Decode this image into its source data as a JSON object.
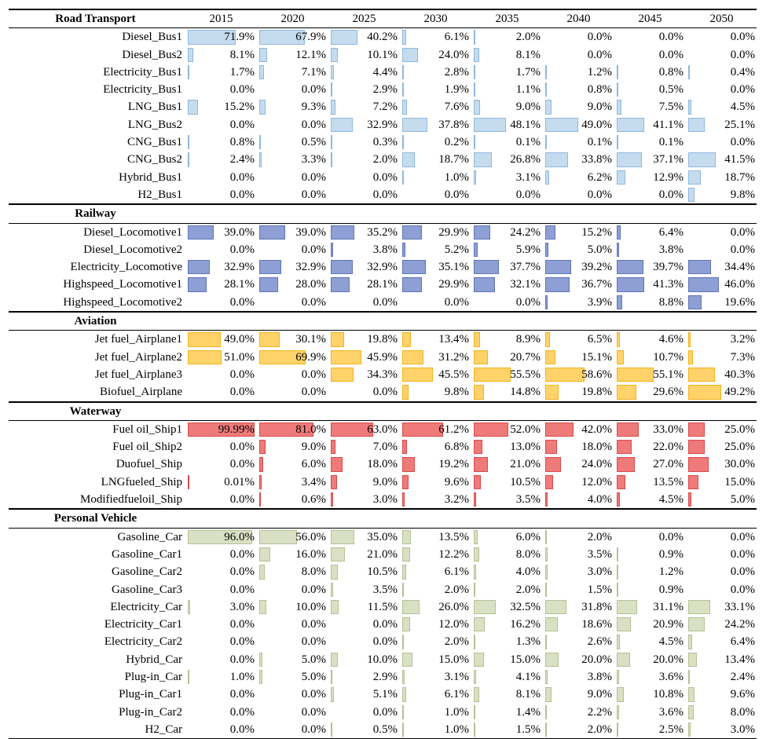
{
  "chart_data": {
    "type": "table",
    "years": [
      "2015",
      "2020",
      "2025",
      "2030",
      "2035",
      "2040",
      "2045",
      "2050"
    ],
    "colors": {
      "Road Transport": {
        "fill": "#c5dcef",
        "stroke": "#8fb8dc"
      },
      "Railway": {
        "fill": "#8d9fd4",
        "stroke": "#5f75b8"
      },
      "Aviation": {
        "fill": "#ffd36a",
        "stroke": "#f2b21e"
      },
      "Waterway": {
        "fill": "#ef7a7a",
        "stroke": "#d94a4a"
      },
      "Personal Vehicle": {
        "fill": "#d9e0c4",
        "stroke": "#b6c194"
      }
    },
    "sections": [
      {
        "name": "Road Transport",
        "rows": [
          {
            "label": "Diesel_Bus1",
            "values": [
              "71.9%",
              "67.9%",
              "40.2%",
              "6.1%",
              "2.0%",
              "0.0%",
              "0.0%",
              "0.0%"
            ]
          },
          {
            "label": "Diesel_Bus2",
            "values": [
              "8.1%",
              "12.1%",
              "10.1%",
              "24.0%",
              "8.1%",
              "0.0%",
              "0.0%",
              "0.0%"
            ]
          },
          {
            "label": "Electricity_Bus1",
            "values": [
              "1.7%",
              "7.1%",
              "4.4%",
              "2.8%",
              "1.7%",
              "1.2%",
              "0.8%",
              "0.4%"
            ]
          },
          {
            "label": "Electricity_Bus1",
            "values": [
              "0.0%",
              "0.0%",
              "2.9%",
              "1.9%",
              "1.1%",
              "0.8%",
              "0.5%",
              "0.0%"
            ]
          },
          {
            "label": "LNG_Bus1",
            "values": [
              "15.2%",
              "9.3%",
              "7.2%",
              "7.6%",
              "9.0%",
              "9.0%",
              "7.5%",
              "4.5%"
            ]
          },
          {
            "label": "LNG_Bus2",
            "values": [
              "0.0%",
              "0.0%",
              "32.9%",
              "37.8%",
              "48.1%",
              "49.0%",
              "41.1%",
              "25.1%"
            ]
          },
          {
            "label": "CNG_Bus1",
            "values": [
              "0.8%",
              "0.5%",
              "0.3%",
              "0.2%",
              "0.1%",
              "0.1%",
              "0.1%",
              "0.0%"
            ]
          },
          {
            "label": "CNG_Bus2",
            "values": [
              "2.4%",
              "3.3%",
              "2.0%",
              "18.7%",
              "26.8%",
              "33.8%",
              "37.1%",
              "41.5%"
            ]
          },
          {
            "label": "Hybrid_Bus1",
            "values": [
              "0.0%",
              "0.0%",
              "0.0%",
              "1.0%",
              "3.1%",
              "6.2%",
              "12.9%",
              "18.7%"
            ]
          },
          {
            "label": "H2_Bus1",
            "values": [
              "0.0%",
              "0.0%",
              "0.0%",
              "0.0%",
              "0.0%",
              "0.0%",
              "0.0%",
              "9.8%"
            ]
          }
        ]
      },
      {
        "name": "Railway",
        "rows": [
          {
            "label": "Diesel_Locomotive1",
            "values": [
              "39.0%",
              "39.0%",
              "35.2%",
              "29.9%",
              "24.2%",
              "15.2%",
              "6.4%",
              "0.0%"
            ]
          },
          {
            "label": "Diesel_Locomotive2",
            "values": [
              "0.0%",
              "0.0%",
              "3.8%",
              "5.2%",
              "5.9%",
              "5.0%",
              "3.8%",
              "0.0%"
            ]
          },
          {
            "label": "Electricity_Locomotive",
            "values": [
              "32.9%",
              "32.9%",
              "32.9%",
              "35.1%",
              "37.7%",
              "39.2%",
              "39.7%",
              "34.4%"
            ]
          },
          {
            "label": "Highspeed_Locomotive1",
            "values": [
              "28.1%",
              "28.0%",
              "28.1%",
              "29.9%",
              "32.1%",
              "36.7%",
              "41.3%",
              "46.0%"
            ]
          },
          {
            "label": "Highspeed_Locomotive2",
            "values": [
              "0.0%",
              "0.0%",
              "0.0%",
              "0.0%",
              "0.0%",
              "3.9%",
              "8.8%",
              "19.6%"
            ]
          }
        ]
      },
      {
        "name": "Aviation",
        "rows": [
          {
            "label": "Jet fuel_Airplane1",
            "values": [
              "49.0%",
              "30.1%",
              "19.8%",
              "13.4%",
              "8.9%",
              "6.5%",
              "4.6%",
              "3.2%"
            ]
          },
          {
            "label": "Jet fuel_Airplane2",
            "values": [
              "51.0%",
              "69.9%",
              "45.9%",
              "31.2%",
              "20.7%",
              "15.1%",
              "10.7%",
              "7.3%"
            ]
          },
          {
            "label": "Jet fuel_Airplane3",
            "values": [
              "0.0%",
              "0.0%",
              "34.3%",
              "45.5%",
              "55.5%",
              "58.6%",
              "55.1%",
              "40.3%"
            ]
          },
          {
            "label": "Biofuel_Airplane",
            "values": [
              "0.0%",
              "0.0%",
              "0.0%",
              "9.8%",
              "14.8%",
              "19.8%",
              "29.6%",
              "49.2%"
            ]
          }
        ]
      },
      {
        "name": "Waterway",
        "rows": [
          {
            "label": "Fuel oil_Ship1",
            "values": [
              "99.99%",
              "81.0%",
              "63.0%",
              "61.2%",
              "52.0%",
              "42.0%",
              "33.0%",
              "25.0%"
            ]
          },
          {
            "label": "Fuel oil_Ship2",
            "values": [
              "0.0%",
              "9.0%",
              "7.0%",
              "6.8%",
              "13.0%",
              "18.0%",
              "22.0%",
              "25.0%"
            ]
          },
          {
            "label": "Duofuel_Ship",
            "values": [
              "0.0%",
              "6.0%",
              "18.0%",
              "19.2%",
              "21.0%",
              "24.0%",
              "27.0%",
              "30.0%"
            ]
          },
          {
            "label": "LNGfueled_Ship",
            "values": [
              "0.01%",
              "3.4%",
              "9.0%",
              "9.6%",
              "10.5%",
              "12.0%",
              "13.5%",
              "15.0%"
            ]
          },
          {
            "label": "Modifiedfueloil_Ship",
            "values": [
              "0.0%",
              "0.6%",
              "3.0%",
              "3.2%",
              "3.5%",
              "4.0%",
              "4.5%",
              "5.0%"
            ]
          }
        ]
      },
      {
        "name": "Personal Vehicle",
        "rows": [
          {
            "label": "Gasoline_Car",
            "values": [
              "96.0%",
              "56.0%",
              "35.0%",
              "13.5%",
              "6.0%",
              "2.0%",
              "0.0%",
              "0.0%"
            ]
          },
          {
            "label": "Gasoline_Car1",
            "values": [
              "0.0%",
              "16.0%",
              "21.0%",
              "12.2%",
              "8.0%",
              "3.5%",
              "0.9%",
              "0.0%"
            ]
          },
          {
            "label": "Gasoline_Car2",
            "values": [
              "0.0%",
              "8.0%",
              "10.5%",
              "6.1%",
              "4.0%",
              "3.0%",
              "1.2%",
              "0.0%"
            ]
          },
          {
            "label": "Gasoline_Car3",
            "values": [
              "0.0%",
              "0.0%",
              "3.5%",
              "2.0%",
              "2.0%",
              "1.5%",
              "0.9%",
              "0.0%"
            ]
          },
          {
            "label": "Electricity_Car",
            "values": [
              "3.0%",
              "10.0%",
              "11.5%",
              "26.0%",
              "32.5%",
              "31.8%",
              "31.1%",
              "33.1%"
            ]
          },
          {
            "label": "Electricity_Car1",
            "values": [
              "0.0%",
              "0.0%",
              "0.0%",
              "12.0%",
              "16.2%",
              "18.6%",
              "20.9%",
              "24.2%"
            ]
          },
          {
            "label": "Electricity_Car2",
            "values": [
              "0.0%",
              "0.0%",
              "0.0%",
              "2.0%",
              "1.3%",
              "2.6%",
              "4.5%",
              "6.4%"
            ]
          },
          {
            "label": "Hybrid_Car",
            "values": [
              "0.0%",
              "5.0%",
              "10.0%",
              "15.0%",
              "15.0%",
              "20.0%",
              "20.0%",
              "13.4%"
            ]
          },
          {
            "label": "Plug-in_Car",
            "values": [
              "1.0%",
              "5.0%",
              "2.9%",
              "3.1%",
              "4.1%",
              "3.8%",
              "3.6%",
              "2.4%"
            ]
          },
          {
            "label": "Plug-in_Car1",
            "values": [
              "0.0%",
              "0.0%",
              "5.1%",
              "6.1%",
              "8.1%",
              "9.0%",
              "10.8%",
              "9.6%"
            ]
          },
          {
            "label": "Plug-in_Car2",
            "values": [
              "0.0%",
              "0.0%",
              "0.0%",
              "1.0%",
              "1.4%",
              "2.2%",
              "3.6%",
              "8.0%"
            ]
          },
          {
            "label": "H2_Car",
            "values": [
              "0.0%",
              "0.0%",
              "0.5%",
              "1.0%",
              "1.5%",
              "2.0%",
              "2.5%",
              "3.0%"
            ]
          }
        ]
      }
    ]
  }
}
